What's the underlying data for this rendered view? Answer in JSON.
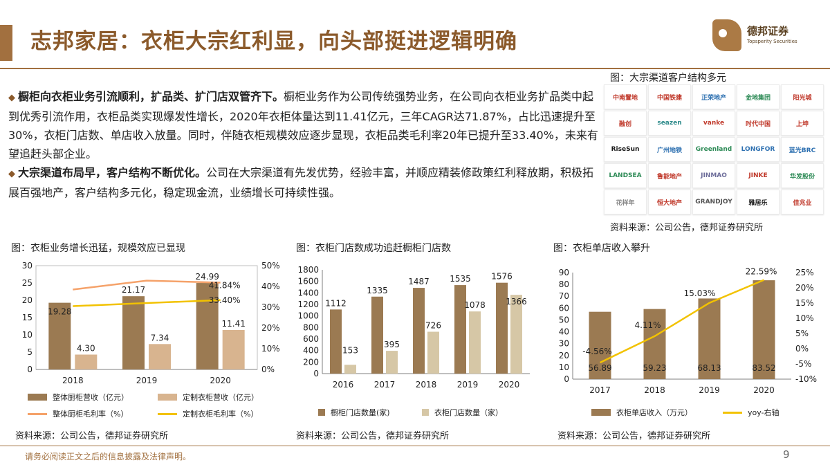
{
  "header": {
    "title": "志邦家居：衣柜大宗红利显，向头部挺进逻辑明确"
  },
  "logo": {
    "name_cn": "德邦证券",
    "name_en": "Topsperity Securities"
  },
  "bullets": [
    {
      "bold": "橱柜向衣柜业务引流顺利，扩品类、扩门店双管齐下。",
      "text": "橱柜业务作为公司传统强势业务，在公司向衣柜业务扩品类中起到优秀引流作用，衣柜品类实现爆发性增长，2020年衣柜体量达到11.41亿元，三年CAGR达71.87%，占比迅速提升至30%，衣柜门店数、单店收入放量。同时，伴随衣柜规模效应逐步显现，衣柜品类毛利率20年已提升至33.40%，未来有望追赶头部企业。"
    },
    {
      "bold": "大宗渠道布局早，客户结构不断优化。",
      "text": "公司在大宗渠道有先发优势，经验丰富，并顺应精装修政策红利释放期，积极拓展百强地产，客户结构多元化，稳定现金流，业绩增长可持续性强。"
    }
  ],
  "logo_panel": {
    "title": "图：大宗渠道客户结构多元",
    "source": "资料来源：公司公告，德邦证券研究所",
    "cells": [
      {
        "text": "中南置地",
        "color": "#c0392b"
      },
      {
        "text": "中国铁建",
        "color": "#c0392b"
      },
      {
        "text": "正荣地产",
        "color": "#2c6fb0"
      },
      {
        "text": "金地集团",
        "color": "#2e8b57"
      },
      {
        "text": "阳光城",
        "color": "#c0392b"
      },
      {
        "text": "融创",
        "color": "#c0392b"
      },
      {
        "text": "seazen",
        "color": "#2c8a8a"
      },
      {
        "text": "vanke",
        "color": "#c0392b"
      },
      {
        "text": "时代中国",
        "color": "#c0392b"
      },
      {
        "text": "上坤",
        "color": "#c0392b"
      },
      {
        "text": "RiseSun",
        "color": "#1a1a1a"
      },
      {
        "text": "广州地铁",
        "color": "#2c6fb0"
      },
      {
        "text": "Greenland",
        "color": "#2e8b57"
      },
      {
        "text": "LONGFOR",
        "color": "#2c6fb0"
      },
      {
        "text": "蓝光BRC",
        "color": "#2c6fb0"
      },
      {
        "text": "LANDSEA",
        "color": "#2e8b57"
      },
      {
        "text": "鲁能地产",
        "color": "#c0392b"
      },
      {
        "text": "JINMAO",
        "color": "#6d6d9a"
      },
      {
        "text": "JINKE",
        "color": "#c0392b"
      },
      {
        "text": "华发股份",
        "color": "#2e8b57"
      },
      {
        "text": "花样年",
        "color": "#888888"
      },
      {
        "text": "恒大地产",
        "color": "#c0392b"
      },
      {
        "text": "GRANDJOY",
        "color": "#555555"
      },
      {
        "text": "雅居乐",
        "color": "#1a1a1a"
      },
      {
        "text": "佳兆业",
        "color": "#c0392b"
      }
    ]
  },
  "chart_data": [
    {
      "type": "bar",
      "title": "图：衣柜业务增长迅猛，规模效应已显现",
      "source": "资料来源：公司公告，德邦证券研究所",
      "categories": [
        "2018",
        "2019",
        "2020"
      ],
      "series": [
        {
          "name": "整体厨柜营收（亿元）",
          "kind": "bar",
          "axis": "left",
          "values": [
            19.28,
            21.17,
            24.99
          ],
          "labels": [
            "19.28",
            "21.17",
            "24.99"
          ]
        },
        {
          "name": "定制衣柜营收（亿元）",
          "kind": "bar",
          "axis": "left",
          "values": [
            4.3,
            7.34,
            11.41
          ],
          "labels": [
            "4.30",
            "7.34",
            "11.41"
          ]
        },
        {
          "name": "整体厨柜毛利率（%）",
          "kind": "line",
          "axis": "right",
          "values": [
            38.5,
            42.8,
            41.84
          ],
          "labels": [
            "",
            "",
            "41.84%"
          ]
        },
        {
          "name": "定制衣柜毛利率（%）",
          "kind": "line",
          "axis": "right",
          "values": [
            30.5,
            32.0,
            33.4
          ],
          "labels": [
            "",
            "",
            "33.40%"
          ]
        }
      ],
      "ylim": [
        0,
        30
      ],
      "yticks": [
        "0",
        "5",
        "10",
        "15",
        "20",
        "25",
        "30"
      ],
      "y2lim": [
        0,
        50
      ],
      "y2ticks": [
        "0%",
        "10%",
        "20%",
        "30%",
        "40%",
        "50%"
      ],
      "colors": {
        "bar1": "#9b7a52",
        "bar2": "#d8b48f",
        "line1": "#f5a26a",
        "line2": "#f2c200"
      }
    },
    {
      "type": "bar",
      "title": "图：衣柜门店数成功追赶橱柜门店数",
      "source": "资料来源：公司公告，德邦证券研究所",
      "categories": [
        "2016",
        "2017",
        "2018",
        "2019",
        "2020"
      ],
      "series": [
        {
          "name": "橱柜门店数量(家)",
          "values": [
            1112,
            1335,
            1487,
            1535,
            1576
          ]
        },
        {
          "name": "衣柜门店数量（家）",
          "values": [
            153,
            395,
            726,
            1078,
            1366
          ]
        }
      ],
      "ylim": [
        0,
        1800
      ],
      "yticks": [
        "0",
        "200",
        "400",
        "600",
        "800",
        "1000",
        "1200",
        "1400",
        "1600",
        "1800"
      ],
      "colors": {
        "bar1": "#9b7a52",
        "bar2": "#d6c7a6"
      }
    },
    {
      "type": "bar",
      "title": "图：衣柜单店收入攀升",
      "source": "资料来源：公司公告，德邦证券研究所",
      "categories": [
        "2017",
        "2018",
        "2019",
        "2020"
      ],
      "series": [
        {
          "name": "衣柜单店收入（万元）",
          "kind": "bar",
          "axis": "left",
          "values": [
            56.89,
            59.23,
            68.13,
            83.52
          ],
          "labels": [
            "56.89",
            "59.23",
            "68.13",
            "83.52"
          ]
        },
        {
          "name": "yoy-右轴",
          "kind": "line",
          "axis": "right",
          "values": [
            -4.56,
            4.11,
            15.03,
            22.59
          ],
          "labels": [
            "-4.56%",
            "4.11%",
            "15.03%",
            "22.59%"
          ]
        }
      ],
      "ylim": [
        0,
        90
      ],
      "yticks": [
        "0",
        "10",
        "20",
        "30",
        "40",
        "50",
        "60",
        "70",
        "80",
        "90"
      ],
      "y2lim": [
        -10,
        25
      ],
      "y2ticks": [
        "-10%",
        "-5%",
        "0%",
        "5%",
        "10%",
        "15%",
        "20%",
        "25%"
      ],
      "colors": {
        "bar1": "#9b7a52",
        "line1": "#f2c200"
      }
    }
  ],
  "footer": {
    "disclaimer": "请务必阅读正文之后的信息披露及法律声明。",
    "page": "9"
  }
}
